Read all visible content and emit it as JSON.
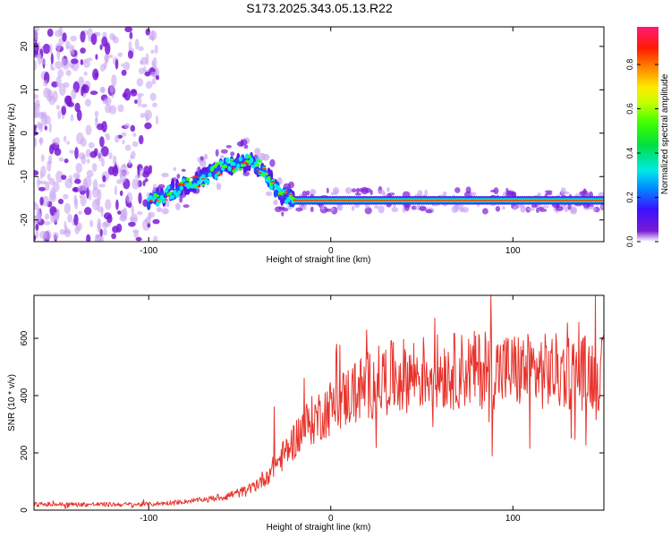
{
  "chart_data": [
    {
      "type": "heatmap",
      "title": "S173.2025.343.05.13.R22",
      "xlabel": "Height of straight line (km)",
      "ylabel": "Frequency (Hz)",
      "xlim": [
        -163,
        150
      ],
      "ylim": [
        -25,
        24.5
      ],
      "x_ticks": [
        -100,
        0,
        100
      ],
      "y_ticks": [
        -20,
        -10,
        0,
        10,
        20
      ],
      "colorbar": {
        "label": "Normalized spectral amplitude",
        "range": [
          0,
          0.97
        ],
        "ticks": [
          0.0,
          0.2,
          0.4,
          0.6,
          0.8
        ]
      },
      "ridge": {
        "description_points_x": [
          -100,
          -90,
          -80,
          -70,
          -60,
          -50,
          -45,
          -38,
          -33,
          -28,
          -20,
          0,
          50,
          100,
          150
        ],
        "description_points_y": [
          -16,
          -14,
          -12,
          -10.5,
          -8,
          -7,
          -6.5,
          -8,
          -11,
          -14,
          -15.5,
          -15.5,
          -15.5,
          -15.5,
          -15.5
        ]
      },
      "noise_region": {
        "x_from": -163,
        "x_to": -95,
        "y_from": -25,
        "y_to": 24.5
      }
    },
    {
      "type": "line",
      "xlabel": "Height of straight line (km)",
      "ylabel": "SNR (10 * v/v)",
      "xlim": [
        -163,
        150
      ],
      "ylim": [
        0,
        750
      ],
      "x_ticks": [
        -100,
        0,
        100
      ],
      "y_ticks": [
        0,
        200,
        400,
        600
      ],
      "series": [
        {
          "name": "SNR",
          "color": "#e8332c",
          "trend_x": [
            -163,
            -100,
            -80,
            -60,
            -45,
            -35,
            -25,
            -15,
            0,
            15,
            30,
            50,
            80,
            110,
            150
          ],
          "trend_y": [
            20,
            20,
            30,
            45,
            70,
            120,
            200,
            290,
            360,
            420,
            460,
            480,
            490,
            485,
            480
          ],
          "spike_x": [
            -31,
            88
          ],
          "spike_y": [
            360,
            750
          ]
        }
      ]
    }
  ]
}
